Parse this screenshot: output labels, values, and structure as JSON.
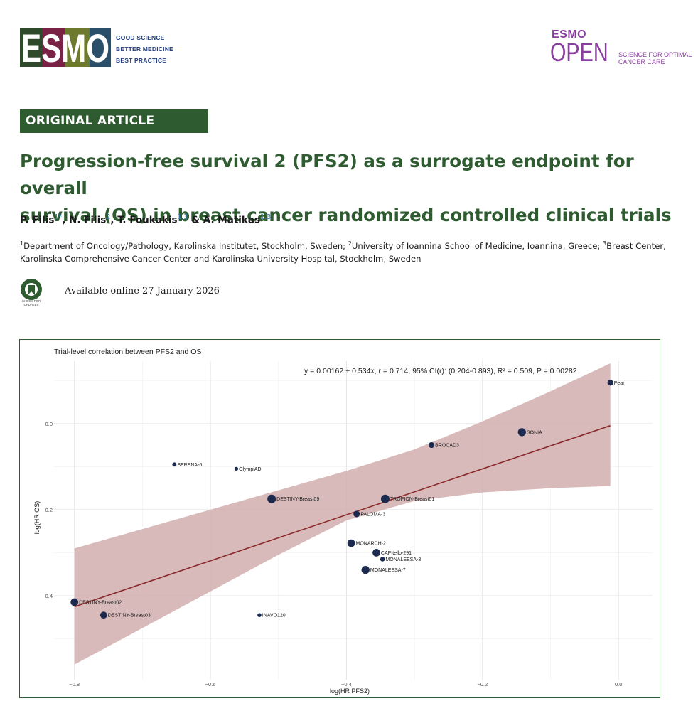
{
  "header": {
    "esmo_logo_text": "ESMO",
    "esmo_tagline": [
      "GOOD SCIENCE",
      "BETTER MEDICINE",
      "BEST PRACTICE"
    ],
    "journal_logo_top": "ESMO",
    "journal_logo_main": "OPEN",
    "journal_tagline": [
      "SCIENCE FOR OPTIMAL",
      "CANCER CARE"
    ]
  },
  "article": {
    "type": "ORIGINAL ARTICLE",
    "title_line1": "Progression-free survival 2 (PFS2) as a surrogate endpoint for overall",
    "title_line2": "survival (OS) in breast cancer randomized controlled clinical trials",
    "authors": [
      {
        "name": "P. Filis",
        "sup": "1*"
      },
      {
        "name": "N. Filis",
        "sup": "2"
      },
      {
        "name": "T. Foukakis",
        "sup": "1,3"
      },
      {
        "name": "A. Matikas",
        "sup": "1,3"
      }
    ],
    "affiliation_line1": "Department of Oncology/Pathology, Karolinska Institutet, Stockholm, Sweden; ",
    "affiliation_line1b": "University of Ioannina School of Medicine, Ioannina, Greece; ",
    "affiliation_line1c": "Breast Center,",
    "affiliation_line2": "Karolinska Comprehensive Cancer Center and Karolinska University Hospital, Stockholm, Sweden",
    "check_updates_label": "CHECK FOR UPDATES",
    "available_online": "Available online 27 January 2026"
  },
  "colors": {
    "brand_green": "#2e5b30",
    "point": "#1b2a4e",
    "fit_line": "#8b2a2a",
    "ci_band": "#d2aeae",
    "journal_purple": "#8a3fa0"
  },
  "chart_data": {
    "type": "scatter",
    "title": "Trial-level correlation between PFS2 and OS",
    "equation": "y = 0.00162 + 0.534x, r = 0.714, 95% CI(r): (0.204-0.893), R² = 0.509, P = 0.00282",
    "xlabel": "log(HR PFS2)",
    "ylabel": "log(HR OS)",
    "xlim": [
      -0.83,
      0.05
    ],
    "ylim": [
      -0.595,
      0.145
    ],
    "x_ticks": [
      -0.8,
      -0.6,
      -0.4,
      -0.2,
      0.0
    ],
    "x_tick_labels": [
      "−0.8",
      "−0.6",
      "−0.4",
      "−0.2",
      "0.0"
    ],
    "y_ticks": [
      0.0,
      -0.2,
      -0.4
    ],
    "y_tick_labels": [
      "0.0",
      "−0.2",
      "−0.4"
    ],
    "grid": true,
    "fit": {
      "intercept": 0.00162,
      "slope": 0.534,
      "x_range": [
        -0.8,
        -0.012
      ]
    },
    "ci_band": {
      "x": [
        -0.8,
        -0.7,
        -0.6,
        -0.5,
        -0.4,
        -0.3,
        -0.2,
        -0.1,
        -0.012
      ],
      "upper": [
        -0.29,
        -0.245,
        -0.2,
        -0.155,
        -0.11,
        -0.06,
        0.005,
        0.075,
        0.14
      ],
      "lower": [
        -0.56,
        -0.475,
        -0.39,
        -0.305,
        -0.225,
        -0.18,
        -0.16,
        -0.15,
        -0.145
      ]
    },
    "points": [
      {
        "name": "Pearl",
        "x": -0.012,
        "y": 0.095,
        "size": 1.8
      },
      {
        "name": "SONIA",
        "x": -0.142,
        "y": -0.02,
        "size": 2.8
      },
      {
        "name": "BROCAD3",
        "x": -0.275,
        "y": -0.05,
        "size": 1.8
      },
      {
        "name": "SERENA-6",
        "x": -0.653,
        "y": -0.095,
        "size": 1.1
      },
      {
        "name": "OlympiAD",
        "x": -0.562,
        "y": -0.105,
        "size": 0.9
      },
      {
        "name": "DESTINY-Breast09",
        "x": -0.51,
        "y": -0.175,
        "size": 3.0
      },
      {
        "name": "TROPION-Breast01",
        "x": -0.343,
        "y": -0.175,
        "size": 3.0
      },
      {
        "name": "PALOMA-3",
        "x": -0.385,
        "y": -0.21,
        "size": 2.1
      },
      {
        "name": "MONARCH-2",
        "x": -0.393,
        "y": -0.278,
        "size": 2.6
      },
      {
        "name": "CAPItello-291",
        "x": -0.356,
        "y": -0.3,
        "size": 2.6
      },
      {
        "name": "MONALEESA-3",
        "x": -0.347,
        "y": -0.315,
        "size": 1.3
      },
      {
        "name": "MONALEESA-7",
        "x": -0.372,
        "y": -0.34,
        "size": 2.8
      },
      {
        "name": "DESTINY-Breast02",
        "x": -0.8,
        "y": -0.415,
        "size": 2.6
      },
      {
        "name": "DESTINY-Breast03",
        "x": -0.757,
        "y": -0.445,
        "size": 2.3
      },
      {
        "name": "INAVO120",
        "x": -0.528,
        "y": -0.445,
        "size": 1.0
      }
    ]
  }
}
